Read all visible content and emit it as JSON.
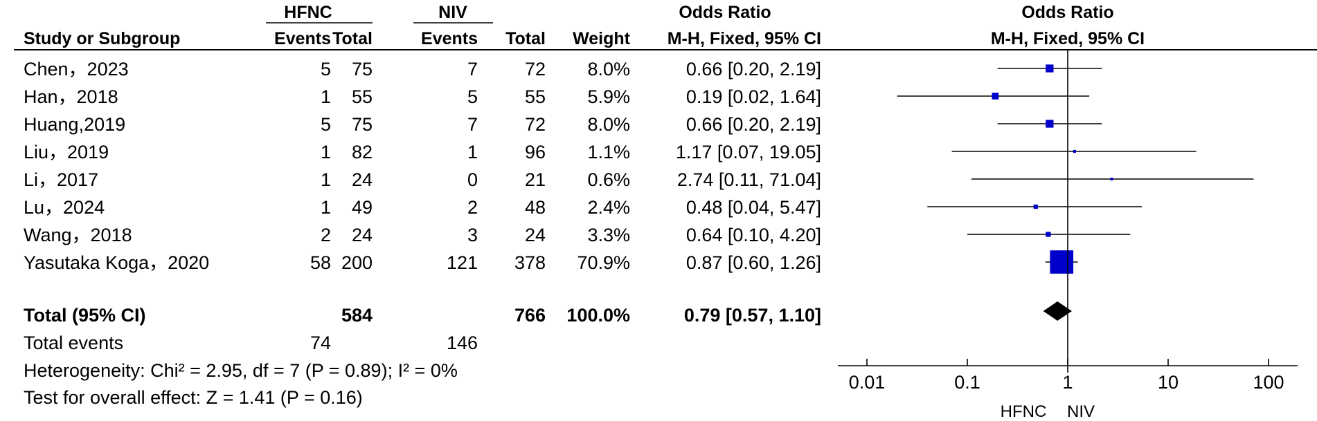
{
  "chart_data": {
    "type": "forest",
    "title": "",
    "header": {
      "study": "Study or Subgroup",
      "group1": "HFNC",
      "group2": "NIV",
      "events": "Events",
      "total": "Total",
      "weight": "Weight",
      "or_title": "Odds Ratio",
      "or_method": "M-H, Fixed, 95% CI"
    },
    "studies": [
      {
        "study": "Chen，2023",
        "e1": "5",
        "n1": "75",
        "e2": "7",
        "n2": "72",
        "weight": "8.0%",
        "ci_text": "0.66 [0.20, 2.19]",
        "or": 0.66,
        "lo": 0.2,
        "hi": 2.19,
        "w": 8.0
      },
      {
        "study": "Han，2018",
        "e1": "1",
        "n1": "55",
        "e2": "5",
        "n2": "55",
        "weight": "5.9%",
        "ci_text": "0.19 [0.02, 1.64]",
        "or": 0.19,
        "lo": 0.02,
        "hi": 1.64,
        "w": 5.9
      },
      {
        "study": "Huang,2019",
        "e1": "5",
        "n1": "75",
        "e2": "7",
        "n2": "72",
        "weight": "8.0%",
        "ci_text": "0.66 [0.20, 2.19]",
        "or": 0.66,
        "lo": 0.2,
        "hi": 2.19,
        "w": 8.0
      },
      {
        "study": "Liu，2019",
        "e1": "1",
        "n1": "82",
        "e2": "1",
        "n2": "96",
        "weight": "1.1%",
        "ci_text": "1.17 [0.07, 19.05]",
        "or": 1.17,
        "lo": 0.07,
        "hi": 19.05,
        "w": 1.1
      },
      {
        "study": "Li，2017",
        "e1": "1",
        "n1": "24",
        "e2": "0",
        "n2": "21",
        "weight": "0.6%",
        "ci_text": "2.74 [0.11, 71.04]",
        "or": 2.74,
        "lo": 0.11,
        "hi": 71.04,
        "w": 0.6
      },
      {
        "study": "Lu，2024",
        "e1": "1",
        "n1": "49",
        "e2": "2",
        "n2": "48",
        "weight": "2.4%",
        "ci_text": "0.48 [0.04, 5.47]",
        "or": 0.48,
        "lo": 0.04,
        "hi": 5.47,
        "w": 2.4
      },
      {
        "study": "Wang，2018",
        "e1": "2",
        "n1": "24",
        "e2": "3",
        "n2": "24",
        "weight": "3.3%",
        "ci_text": "0.64 [0.10, 4.20]",
        "or": 0.64,
        "lo": 0.1,
        "hi": 4.2,
        "w": 3.3
      },
      {
        "study": "Yasutaka Koga，2020",
        "e1": "58",
        "n1": "200",
        "e2": "121",
        "n2": "378",
        "weight": "70.9%",
        "ci_text": "0.87 [0.60, 1.26]",
        "or": 0.87,
        "lo": 0.6,
        "hi": 1.26,
        "w": 70.9
      }
    ],
    "total": {
      "label": "Total (95% CI)",
      "n1": "584",
      "n2": "766",
      "weight": "100.0%",
      "ci_text": "0.79 [0.57, 1.10]",
      "or": 0.79,
      "lo": 0.57,
      "hi": 1.1
    },
    "total_events": {
      "label": "Total events",
      "e1": "74",
      "e2": "146"
    },
    "heterogeneity": "Heterogeneity: Chi² = 2.95, df = 7 (P = 0.89); I² = 0%",
    "overall_effect": "Test for overall effect: Z = 1.41 (P = 0.16)",
    "x_axis": {
      "scale": "log",
      "range": [
        0.01,
        100
      ],
      "ticks": [
        0.01,
        0.1,
        1,
        10,
        100
      ],
      "tick_labels": [
        "0.01",
        "0.1",
        "1",
        "10",
        "100"
      ],
      "favours_left": "HFNC",
      "favours_right": "NIV"
    },
    "colors": {
      "marker": "#0000cc",
      "diamond": "#000000",
      "line": "#000000"
    }
  }
}
